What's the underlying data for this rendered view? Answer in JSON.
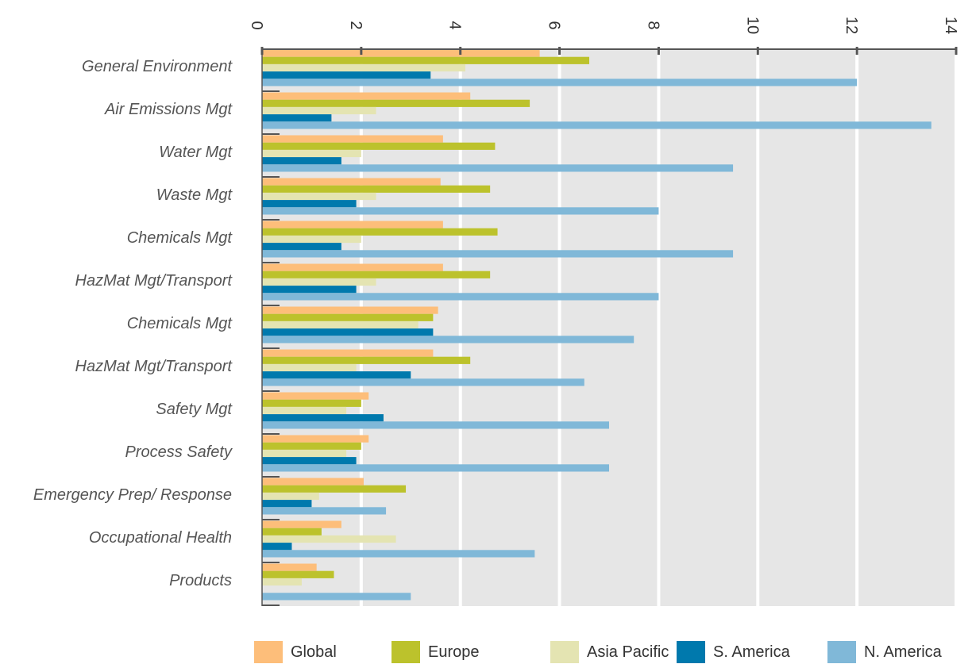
{
  "chart_data": {
    "type": "bar",
    "orientation": "horizontal",
    "title": "",
    "xlabel": "",
    "ylabel": "",
    "xlim": [
      0,
      14
    ],
    "x_ticks": [
      "0",
      "2",
      "4",
      "6",
      "8",
      "10",
      "12",
      "14"
    ],
    "grid": true,
    "legend_position": "bottom",
    "categories": [
      "General Environment",
      "Air Emissions Mgt",
      "Water Mgt",
      "Waste Mgt",
      "Chemicals Mgt",
      "HazMat Mgt/Transport",
      "Chemicals Mgt",
      "HazMat Mgt/Transport",
      "Safety Mgt",
      "Process Safety",
      "Emergency Prep/ Response",
      "Occupational Health",
      "Products"
    ],
    "series": [
      {
        "name": "Global",
        "color": "#FDBE7A",
        "values": [
          5.6,
          4.2,
          3.65,
          3.6,
          3.65,
          3.65,
          3.55,
          3.45,
          2.15,
          2.15,
          2.05,
          1.6,
          1.1
        ]
      },
      {
        "name": "Europe",
        "color": "#BCC22C",
        "values": [
          6.6,
          5.4,
          4.7,
          4.6,
          4.75,
          4.6,
          3.45,
          4.2,
          2.0,
          2.0,
          2.9,
          1.2,
          1.45
        ]
      },
      {
        "name": "Asia Pacific",
        "color": "#E4E4B2",
        "values": [
          4.1,
          2.3,
          2.0,
          2.3,
          2.0,
          2.3,
          3.15,
          1.9,
          1.7,
          1.7,
          1.15,
          2.7,
          0.8
        ]
      },
      {
        "name": "S. America",
        "color": "#0079AD",
        "values": [
          3.4,
          1.4,
          1.6,
          1.9,
          1.6,
          1.9,
          3.45,
          3.0,
          2.45,
          1.9,
          1.0,
          0.6,
          0.0
        ]
      },
      {
        "name": "N. America",
        "color": "#80B8D8",
        "values": [
          12.0,
          13.5,
          9.5,
          8.0,
          9.5,
          8.0,
          7.5,
          6.5,
          7.0,
          7.0,
          2.5,
          5.5,
          3.0
        ]
      }
    ]
  }
}
